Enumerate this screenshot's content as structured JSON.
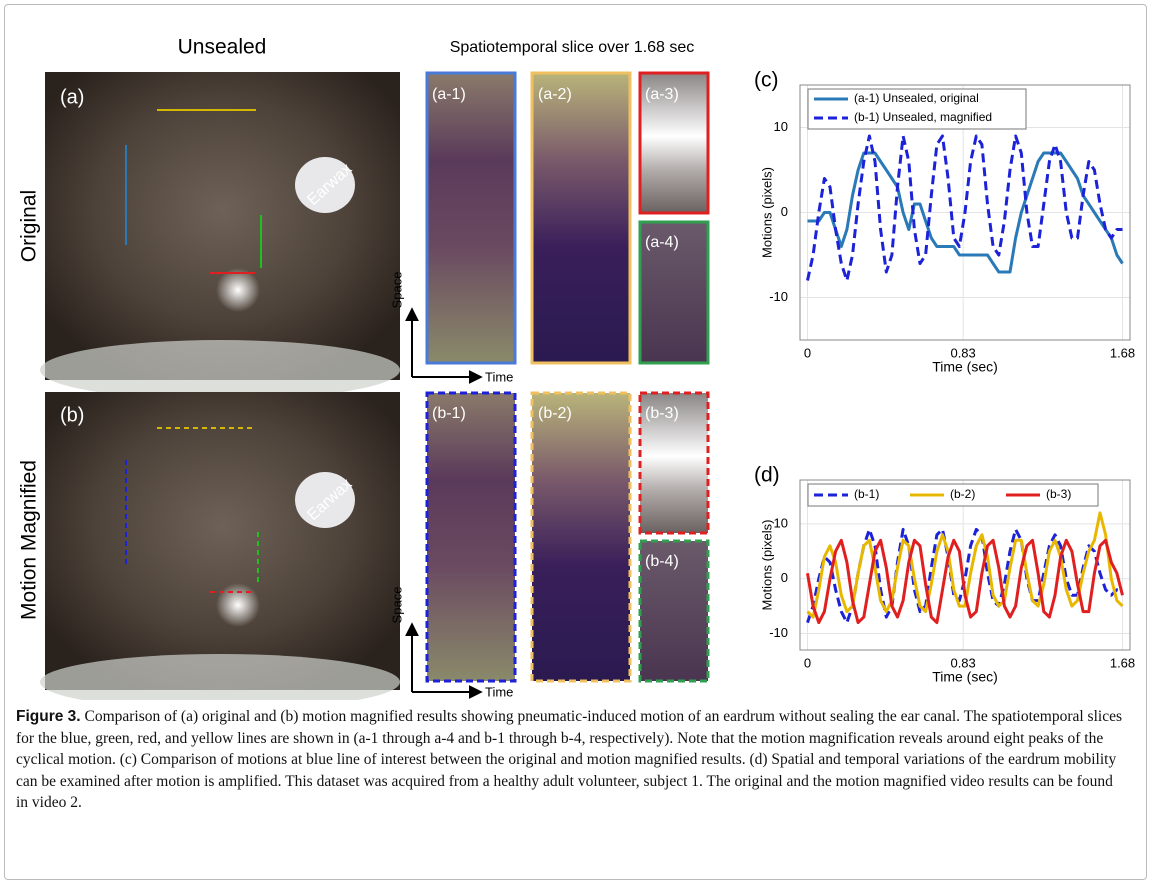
{
  "figure": {
    "unsealed": "Unsealed",
    "row_labels": [
      "Original",
      "Motion Magnified"
    ],
    "photo_labels": [
      "(a)",
      "(b)"
    ],
    "earwax": [
      "Earwax",
      "Earwax"
    ],
    "slice_title": "Spatiotemporal slice over 1.68 sec",
    "slice_labels": [
      [
        "(a-1)",
        "(a-2)",
        "(a-3)",
        "(a-4)"
      ],
      [
        "(b-1)",
        "(b-2)",
        "(b-3)",
        "(b-4)"
      ]
    ],
    "space": [
      "Space",
      "Space"
    ],
    "time": [
      "Time",
      "Time"
    ]
  },
  "chart_data": [
    {
      "type": "line",
      "panel_label": "(c)",
      "ylabel": "Motions (pixels)",
      "xlabel": "Time (sec)",
      "x": [
        0,
        0.03,
        0.06,
        0.09,
        0.12,
        0.15,
        0.18,
        0.21,
        0.24,
        0.27,
        0.3,
        0.33,
        0.36,
        0.39,
        0.42,
        0.45,
        0.48,
        0.51,
        0.54,
        0.57,
        0.6,
        0.63,
        0.66,
        0.69,
        0.72,
        0.75,
        0.78,
        0.81,
        0.84,
        0.87,
        0.9,
        0.93,
        0.96,
        0.99,
        1.02,
        1.05,
        1.08,
        1.11,
        1.14,
        1.17,
        1.2,
        1.23,
        1.26,
        1.29,
        1.32,
        1.35,
        1.38,
        1.41,
        1.44,
        1.47,
        1.5,
        1.53,
        1.56,
        1.59,
        1.62,
        1.65,
        1.68
      ],
      "series": [
        {
          "name": "(a-1) Unsealed, original",
          "color": "#2a7ab8",
          "linestyle": "solid",
          "values": [
            -1,
            -1,
            -1,
            0,
            0,
            -2,
            -4,
            -2,
            2,
            5,
            7,
            7,
            7,
            6,
            5,
            4,
            3,
            0,
            -2,
            1,
            1,
            -1,
            -3,
            -4,
            -4,
            -4,
            -4,
            -5,
            -5,
            -5,
            -5,
            -5,
            -5,
            -6,
            -7,
            -7,
            -7,
            -3,
            0,
            2,
            4,
            6,
            7,
            7,
            7,
            7,
            6,
            5,
            4,
            2,
            1,
            0,
            -1,
            -2,
            -3,
            -5,
            -6
          ]
        },
        {
          "name": "(b-1) Unsealed, magnified",
          "color": "#1c22d8",
          "linestyle": "dashed",
          "values": [
            -8,
            -5,
            0,
            4,
            3,
            -2,
            -6,
            -8,
            -5,
            1,
            6,
            9,
            6,
            -2,
            -7,
            -5,
            3,
            9,
            6,
            -2,
            -6,
            -5,
            2,
            8,
            9,
            4,
            -3,
            -4,
            0,
            6,
            9,
            8,
            1,
            -4,
            -5,
            -1,
            5,
            9,
            7,
            0,
            -4,
            -4,
            1,
            6,
            8,
            6,
            0,
            -3,
            -3,
            2,
            6,
            5,
            1,
            -2,
            -3,
            -2,
            -2
          ]
        }
      ],
      "xlim": [
        -0.04,
        1.72
      ],
      "ylim": [
        -15,
        15
      ],
      "xticks": [
        0,
        0.83,
        1.68
      ],
      "yticks": [
        -10,
        0,
        10
      ],
      "grid": true,
      "legend": "upper left"
    },
    {
      "type": "line",
      "panel_label": "(d)",
      "ylabel": "Motions (pixels)",
      "xlabel": "Time (sec)",
      "x": [
        0,
        0.03,
        0.06,
        0.09,
        0.12,
        0.15,
        0.18,
        0.21,
        0.24,
        0.27,
        0.3,
        0.33,
        0.36,
        0.39,
        0.42,
        0.45,
        0.48,
        0.51,
        0.54,
        0.57,
        0.6,
        0.63,
        0.66,
        0.69,
        0.72,
        0.75,
        0.78,
        0.81,
        0.84,
        0.87,
        0.9,
        0.93,
        0.96,
        0.99,
        1.02,
        1.05,
        1.08,
        1.11,
        1.14,
        1.17,
        1.2,
        1.23,
        1.26,
        1.29,
        1.32,
        1.35,
        1.38,
        1.41,
        1.44,
        1.47,
        1.5,
        1.53,
        1.56,
        1.59,
        1.62,
        1.65,
        1.68
      ],
      "series": [
        {
          "name": "(b-1)",
          "color": "#1c22d8",
          "linestyle": "dashed",
          "values": [
            -8,
            -5,
            0,
            4,
            3,
            -2,
            -6,
            -8,
            -5,
            1,
            6,
            9,
            6,
            -2,
            -7,
            -5,
            3,
            9,
            6,
            -2,
            -6,
            -5,
            2,
            8,
            9,
            4,
            -3,
            -4,
            0,
            6,
            9,
            8,
            1,
            -4,
            -5,
            -1,
            5,
            9,
            7,
            0,
            -4,
            -4,
            1,
            6,
            8,
            6,
            0,
            -3,
            -3,
            2,
            6,
            5,
            1,
            -2,
            -3,
            -2,
            -2
          ]
        },
        {
          "name": "(b-2)",
          "color": "#e8b800",
          "linestyle": "solid",
          "values": [
            -6,
            -7,
            -2,
            4,
            6,
            3,
            -3,
            -6,
            -5,
            1,
            6,
            7,
            2,
            -4,
            -6,
            -4,
            2,
            7,
            6,
            0,
            -5,
            -6,
            -1,
            5,
            8,
            5,
            -2,
            -5,
            -5,
            1,
            6,
            8,
            4,
            -3,
            -5,
            -4,
            2,
            7,
            7,
            1,
            -4,
            -5,
            -1,
            5,
            7,
            4,
            -2,
            -5,
            -4,
            1,
            5,
            7,
            12,
            8,
            0,
            -4,
            -5
          ]
        },
        {
          "name": "(b-3)",
          "color": "#e02020",
          "linestyle": "solid",
          "values": [
            1,
            -5,
            -8,
            -6,
            0,
            5,
            7,
            3,
            -4,
            -8,
            -7,
            -1,
            5,
            7,
            2,
            -5,
            -7,
            -4,
            3,
            7,
            6,
            -1,
            -7,
            -8,
            -2,
            4,
            7,
            5,
            -3,
            -7,
            -6,
            1,
            6,
            7,
            2,
            -5,
            -7,
            -5,
            2,
            6,
            7,
            1,
            -6,
            -7,
            -3,
            4,
            7,
            5,
            -1,
            -6,
            -6,
            1,
            6,
            7,
            3,
            1,
            -3
          ]
        }
      ],
      "xlim": [
        -0.04,
        1.72
      ],
      "ylim": [
        -13,
        18
      ],
      "xticks": [
        0,
        0.83,
        1.68
      ],
      "yticks": [
        -10,
        0,
        10
      ],
      "grid": true,
      "legend": "upper left"
    }
  ],
  "caption": {
    "label": "Figure 3.",
    "text": "Comparison of (a) original and (b) motion magnified results showing pneumatic-induced motion of an eardrum without sealing the ear canal. The spatiotemporal slices for the blue, green, red, and yellow lines are shown in (a-1 through a-4 and b-1 through b-4, respectively). Note that the motion magnification reveals around eight peaks of the cyclical motion. (c) Comparison of motions at blue line of interest between the original and motion magnified results. (d) Spatial and temporal variations of the eardrum mobility can be examined after motion is amplified. This dataset was acquired from a healthy adult volunteer, subject 1. The original and the motion magnified video results can be found in video 2."
  }
}
